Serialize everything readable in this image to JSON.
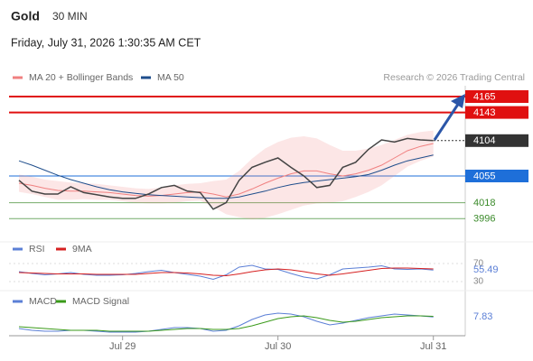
{
  "header": {
    "title": "Gold",
    "interval": "30 MIN",
    "timestamp": "Friday, July 31, 2026 1:30:35 AM CET"
  },
  "chart_data": [
    {
      "type": "line",
      "source": "Research © 2026 Trading Central",
      "categories": [
        null,
        null,
        null,
        null,
        null,
        null,
        null,
        null,
        "Jul 29",
        null,
        null,
        null,
        null,
        null,
        null,
        null,
        null,
        null,
        null,
        null,
        "Jul 30",
        null,
        null,
        null,
        null,
        null,
        null,
        null,
        null,
        null,
        null,
        null,
        "Jul 31"
      ],
      "values": [
        4049,
        4034,
        4030,
        4030,
        4040,
        4032,
        4029,
        4026,
        4024,
        4024,
        4030,
        4039,
        4042,
        4034,
        4032,
        4009,
        4018,
        4049,
        4067,
        4074,
        4080,
        4067,
        4055,
        4039,
        4042,
        4067,
        4074,
        4092,
        4105,
        4102,
        4107,
        4105,
        4104
      ],
      "color": "#444444",
      "series": [
        {
          "name": "MA 20 + Bollinger Bands",
          "color": "#f08080",
          "values": [
            4045,
            4042,
            4038,
            4035,
            4034,
            4034,
            4033,
            4032,
            4030,
            4028,
            4027,
            4028,
            4030,
            4032,
            4033,
            4030,
            4026,
            4030,
            4037,
            4045,
            4052,
            4058,
            4062,
            4062,
            4058,
            4055,
            4058,
            4063,
            4070,
            4080,
            4090,
            4096,
            4100
          ],
          "upper": [
            4057,
            4054,
            4050,
            4048,
            4046,
            4045,
            4044,
            4042,
            4040,
            4038,
            4037,
            4039,
            4042,
            4044,
            4045,
            4048,
            4050,
            4062,
            4079,
            4093,
            4102,
            4108,
            4110,
            4107,
            4098,
            4090,
            4090,
            4093,
            4098,
            4105,
            4112,
            4116,
            4118
          ],
          "lower": [
            4033,
            4030,
            4026,
            4022,
            4022,
            4023,
            4022,
            4022,
            4020,
            4018,
            4017,
            4017,
            4018,
            4020,
            4021,
            4012,
            4002,
            3998,
            3995,
            3997,
            4002,
            4008,
            4014,
            4017,
            4018,
            4020,
            4026,
            4033,
            4042,
            4055,
            4068,
            4076,
            4082
          ]
        },
        {
          "name": "MA 50",
          "color": "#1f4e8c",
          "values": [
            4076,
            4070,
            4063,
            4056,
            4050,
            4045,
            4040,
            4036,
            4033,
            4031,
            4029,
            4028,
            4027,
            4026,
            4025,
            4024,
            4024,
            4026,
            4030,
            4034,
            4039,
            4043,
            4046,
            4048,
            4050,
            4052,
            4054,
            4057,
            4063,
            4070,
            4076,
            4080,
            4084
          ]
        }
      ],
      "ylim": [
        3970,
        4180
      ],
      "levels": [
        {
          "value": 4165,
          "color": "#e01010"
        },
        {
          "value": 4143,
          "color": "#e01010"
        },
        {
          "value": 4104,
          "color": "#333333"
        },
        {
          "value": 4055,
          "color": "#1e6fd9"
        },
        {
          "value": 4018,
          "color": "#3a8a2a"
        },
        {
          "value": 3996,
          "color": "#3a8a2a"
        }
      ]
    },
    {
      "type": "line",
      "series": [
        {
          "name": "RSI",
          "color": "#5b7fd6",
          "values": [
            52,
            48,
            45,
            47,
            50,
            46,
            44,
            44,
            45,
            48,
            52,
            55,
            50,
            46,
            42,
            35,
            45,
            62,
            66,
            58,
            57,
            48,
            40,
            36,
            45,
            58,
            60,
            62,
            65,
            58,
            57,
            58,
            55.49
          ]
        },
        {
          "name": "9MA",
          "color": "#d62020",
          "values": [
            50,
            49,
            48,
            47,
            47,
            47,
            46,
            46,
            46,
            46,
            48,
            50,
            50,
            49,
            47,
            44,
            43,
            47,
            52,
            56,
            58,
            56,
            52,
            47,
            44,
            47,
            51,
            55,
            59,
            60,
            60,
            59,
            58
          ]
        }
      ],
      "ylim": [
        25,
        75
      ],
      "yticks": [
        30,
        70
      ]
    },
    {
      "type": "line",
      "series": [
        {
          "name": "MACD",
          "color": "#5b7fd6",
          "values": [
            -5,
            -7,
            -8,
            -8,
            -7,
            -7,
            -8,
            -9,
            -9,
            -9,
            -8,
            -6,
            -4,
            -4,
            -5,
            -8,
            -7,
            -2,
            5,
            10,
            12,
            11,
            8,
            3,
            -1,
            1,
            4,
            7,
            9,
            11,
            10,
            9,
            7.83
          ]
        },
        {
          "name": "MACD Signal",
          "color": "#3a9a1a",
          "values": [
            -3,
            -4,
            -5,
            -6,
            -7,
            -7,
            -7,
            -8,
            -8,
            -8,
            -8,
            -7,
            -6,
            -5,
            -5,
            -6,
            -6,
            -5,
            -2,
            2,
            6,
            8,
            9,
            7,
            4,
            2,
            3,
            5,
            7,
            8,
            9,
            9,
            8.5
          ]
        }
      ],
      "ylim": [
        -13,
        25
      ]
    }
  ]
}
